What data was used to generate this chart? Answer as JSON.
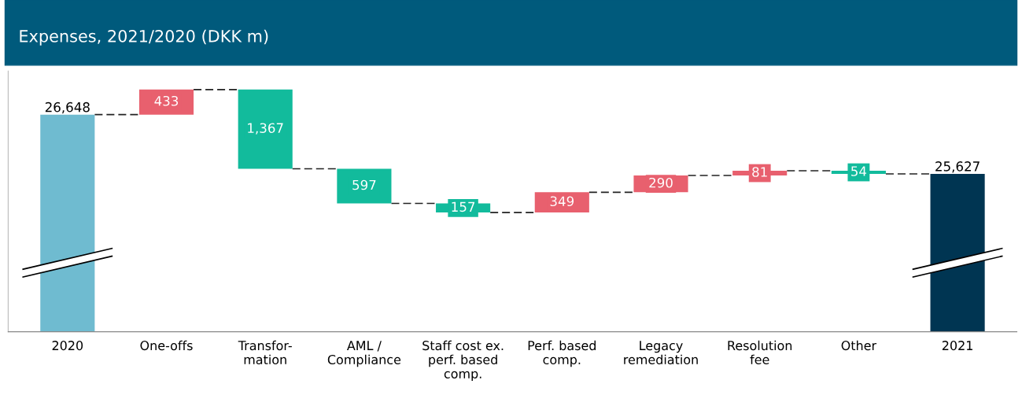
{
  "chart_data": {
    "type": "other",
    "title": "Expenses, 2021/2020 (DKK m)",
    "categories": [
      "2020",
      "One-offs",
      "Transfor-\nmation",
      "AML /\nCompliance",
      "Staff cost ex.\nperf. based\ncomp.",
      "Perf. based\ncomp.",
      "Legacy\nremediation",
      "Resolution\nfee",
      "Other",
      "2021"
    ],
    "series": [
      {
        "color": "#6fbbd0",
        "values": [
          26648,
          null,
          null,
          null,
          null,
          null,
          null,
          null,
          null,
          null
        ],
        "value_labels": [
          "26,648",
          null,
          null,
          null,
          null,
          null,
          null,
          null,
          null,
          null
        ]
      },
      {
        "color": "#e8606e",
        "values": [
          null,
          433,
          null,
          null,
          null,
          349,
          290,
          81,
          null,
          null
        ],
        "value_labels": [
          null,
          "433",
          null,
          null,
          null,
          "349",
          "290",
          "81",
          null,
          null
        ]
      },
      {
        "color": "#12bb9c",
        "values": [
          null,
          null,
          1367,
          597,
          157,
          null,
          null,
          null,
          54,
          null
        ],
        "value_labels": [
          null,
          null,
          "1,367",
          "597",
          "157",
          null,
          null,
          null,
          "54",
          null
        ]
      },
      {
        "color": "#003552",
        "values": [
          null,
          null,
          null,
          null,
          null,
          null,
          null,
          null,
          null,
          25627
        ],
        "value_labels": [
          null,
          null,
          null,
          null,
          null,
          null,
          null,
          null,
          null,
          "25,627"
        ]
      }
    ]
  }
}
